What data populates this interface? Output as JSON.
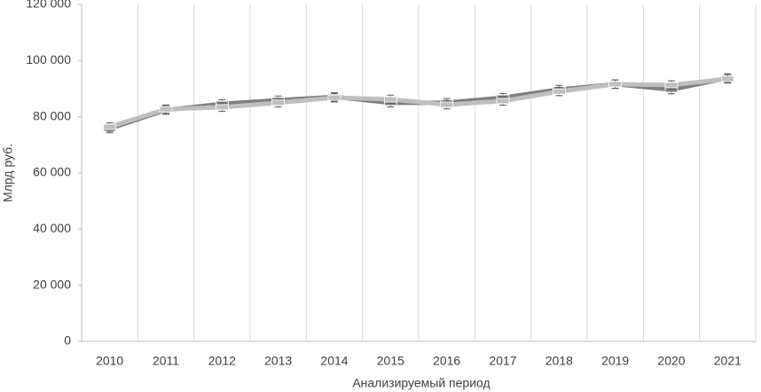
{
  "chart_data": {
    "type": "line",
    "y_label": "Млрд руб.",
    "x_label": "Анализируемый период",
    "categories": [
      "2010",
      "2011",
      "2012",
      "2013",
      "2014",
      "2015",
      "2016",
      "2017",
      "2018",
      "2019",
      "2020",
      "2021"
    ],
    "series": [
      {
        "color": "#7f7f7f",
        "values": [
          75800,
          82400,
          84600,
          85900,
          87100,
          85000,
          85000,
          86800,
          89700,
          91600,
          89700,
          93800
        ],
        "errors": [
          1500,
          1500,
          1500,
          1500,
          1500,
          1500,
          1500,
          1500,
          1500,
          1500,
          1500,
          1500
        ]
      },
      {
        "color": "#bfbfbf",
        "values": [
          76400,
          82700,
          83400,
          85000,
          86800,
          86200,
          84300,
          85600,
          89000,
          91600,
          91300,
          93500
        ],
        "errors": [
          1500,
          1500,
          1500,
          1500,
          1500,
          1500,
          1500,
          1500,
          1500,
          1500,
          1500,
          1500
        ]
      }
    ],
    "ylim": [
      0,
      120000
    ],
    "yticks": [
      0,
      {
        "value": 20000,
        "label": "20 000"
      },
      {
        "value": 40000,
        "label": "40 000"
      },
      {
        "value": 60000,
        "label": "60 000"
      },
      {
        "value": 80000,
        "label": "80 000"
      },
      {
        "value": 100000,
        "label": "100 000"
      },
      {
        "value": 120000,
        "label": "120 000"
      }
    ],
    "grid": "x"
  }
}
